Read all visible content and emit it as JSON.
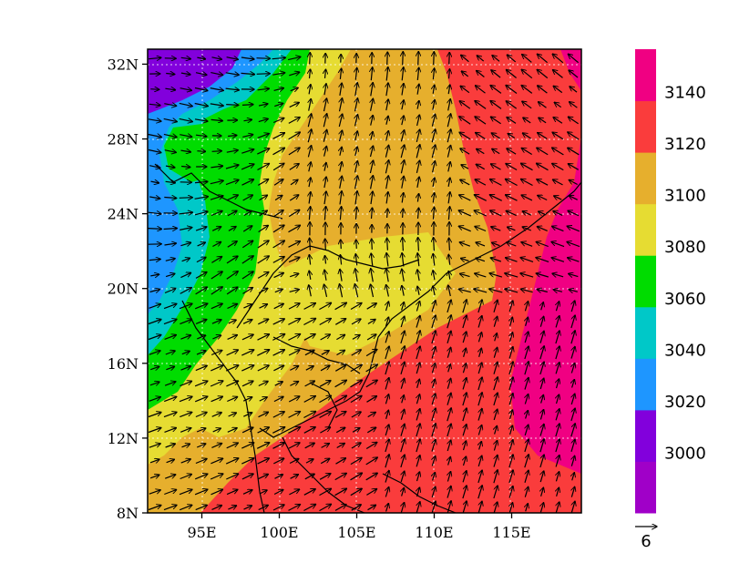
{
  "map": {
    "lon_range": [
      91.5,
      119.5
    ],
    "lat_range": [
      8,
      32.8
    ],
    "x_ticks": [
      {
        "value": 95,
        "label": "95E"
      },
      {
        "value": 100,
        "label": "100E"
      },
      {
        "value": 105,
        "label": "105E"
      },
      {
        "value": 110,
        "label": "110E"
      },
      {
        "value": 115,
        "label": "115E"
      }
    ],
    "y_ticks": [
      {
        "value": 8,
        "label": "8N"
      },
      {
        "value": 12,
        "label": "12N"
      },
      {
        "value": 16,
        "label": "16N"
      },
      {
        "value": 20,
        "label": "20N"
      },
      {
        "value": 24,
        "label": "24N"
      },
      {
        "value": 28,
        "label": "28N"
      },
      {
        "value": 32,
        "label": "32N"
      }
    ],
    "gridlines": "dotted",
    "coastlines": true
  },
  "colorbar": {
    "levels": [
      "3000",
      "3020",
      "3040",
      "3060",
      "3080",
      "3100",
      "3120",
      "3140"
    ],
    "colors": [
      "#a000c8",
      "#8200dc",
      "#1e96ff",
      "#00c8c8",
      "#00dc00",
      "#e6dc32",
      "#e6af2d",
      "#fa3c3c",
      "#f00082"
    ]
  },
  "wind_reference": {
    "value": "6"
  }
}
